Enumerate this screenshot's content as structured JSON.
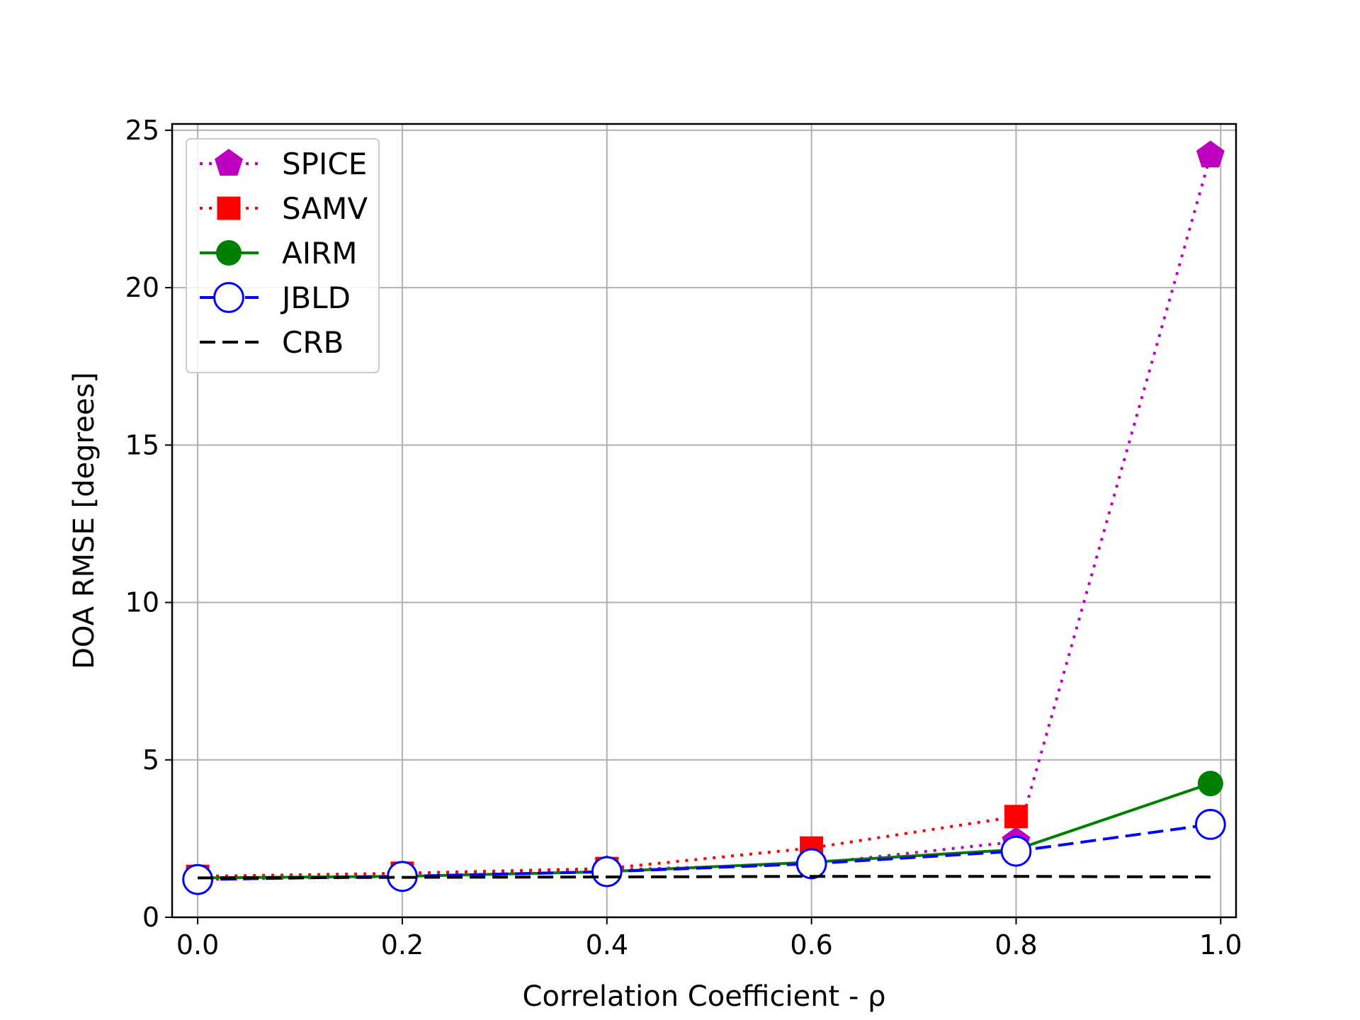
{
  "chart_data": {
    "type": "line",
    "title": "",
    "xlabel": "Correlation Coefficient - ρ",
    "ylabel": "DOA RMSE [degrees]",
    "xlim": [
      -0.025,
      1.015
    ],
    "ylim": [
      0,
      25.2
    ],
    "xticks": [
      0.0,
      0.2,
      0.4,
      0.6,
      0.8,
      1.0
    ],
    "xtick_labels": [
      "0.0",
      "0.2",
      "0.4",
      "0.6",
      "0.8",
      "1.0"
    ],
    "yticks": [
      0,
      5,
      10,
      15,
      20,
      25
    ],
    "ytick_labels": [
      "0",
      "5",
      "10",
      "15",
      "20",
      "25"
    ],
    "grid": true,
    "legend_position": "top-left",
    "x": [
      0.0,
      0.2,
      0.4,
      0.6,
      0.8,
      0.99
    ],
    "series": [
      {
        "name": "SPICE",
        "values": [
          1.2,
          1.3,
          1.5,
          1.7,
          2.4,
          24.2
        ],
        "color": "#bf00bf",
        "linestyle": "dotted",
        "marker": "pentagon"
      },
      {
        "name": "SAMV",
        "values": [
          1.3,
          1.4,
          1.55,
          2.2,
          3.2,
          null
        ],
        "color": "#ff0000",
        "linestyle": "dotted",
        "marker": "square"
      },
      {
        "name": "AIRM",
        "values": [
          1.25,
          1.3,
          1.45,
          1.75,
          2.15,
          4.25
        ],
        "color": "#008000",
        "linestyle": "solid",
        "marker": "circle-filled"
      },
      {
        "name": "JBLD",
        "values": [
          1.2,
          1.3,
          1.45,
          1.7,
          2.1,
          2.95
        ],
        "color": "#0000ff",
        "linestyle": "dashed",
        "marker": "circle-open"
      },
      {
        "name": "CRB",
        "values": [
          1.25,
          1.27,
          1.28,
          1.3,
          1.3,
          1.28
        ],
        "color": "#000000",
        "linestyle": "dashed",
        "marker": "none"
      }
    ]
  }
}
